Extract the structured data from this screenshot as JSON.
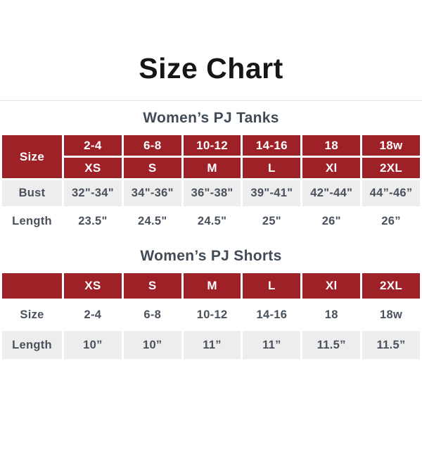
{
  "page": {
    "title": "Size Chart"
  },
  "colors": {
    "header_red": "#9d2126",
    "row_gray": "#ededee",
    "text_slate": "#49515c",
    "subtitle_slate": "#414b58",
    "title_black": "#161616"
  },
  "tanks": {
    "subtitle": "Women’s PJ Tanks",
    "corner_label": "Size",
    "header_sizes": [
      "2-4",
      "6-8",
      "10-12",
      "14-16",
      "18",
      "18w"
    ],
    "header_letters": [
      "XS",
      "S",
      "M",
      "L",
      "Xl",
      "2XL"
    ],
    "bust": {
      "label": "Bust",
      "values": [
        "32\"-34\"",
        "34\"-36\"",
        "36\"-38\"",
        "39\"-41\"",
        "42\"-44\"",
        "44”-46”"
      ]
    },
    "length": {
      "label": "Length",
      "values": [
        "23.5\"",
        "24.5\"",
        "24.5\"",
        "25\"",
        "26\"",
        "26”"
      ]
    }
  },
  "shorts": {
    "subtitle": "Women’s PJ Shorts",
    "corner_label": "",
    "header_letters": [
      "XS",
      "S",
      "M",
      "L",
      "Xl",
      "2XL"
    ],
    "size": {
      "label": "Size",
      "values": [
        "2-4",
        "6-8",
        "10-12",
        "14-16",
        "18",
        "18w"
      ]
    },
    "length": {
      "label": "Length",
      "values": [
        "10”",
        "10”",
        "11”",
        "11”",
        "11.5”",
        "11.5”"
      ]
    }
  }
}
